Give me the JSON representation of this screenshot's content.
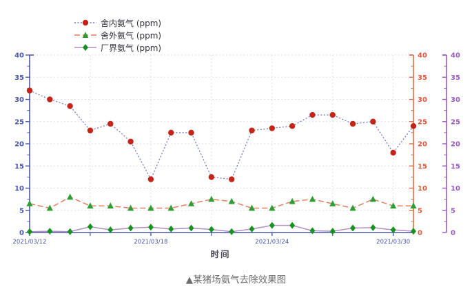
{
  "figure": {
    "caption": "▲某猪场氨气去除效果图"
  },
  "chart_data": {
    "type": "line",
    "title": "",
    "xlabel": "时间",
    "ylim": [
      0,
      40
    ],
    "y_tick_step": 5,
    "y_minor_tick_step": 2.5,
    "grid": true,
    "legend_position": "top-left",
    "x": [
      "2021/03/12",
      "2021/03/13",
      "2021/03/14",
      "2021/03/15",
      "2021/03/16",
      "2021/03/17",
      "2021/03/18",
      "2021/03/19",
      "2021/03/20",
      "2021/03/21",
      "2021/03/22",
      "2021/03/23",
      "2021/03/24",
      "2021/03/25",
      "2021/03/26",
      "2021/03/27",
      "2021/03/28",
      "2021/03/29",
      "2021/03/30",
      "2021/03/31"
    ],
    "x_tick_labels": [
      "2021/03/12",
      "2021/03/18",
      "2021/03/24",
      "2021/03/30"
    ],
    "x_tick_indices": [
      0,
      6,
      12,
      18
    ],
    "x_minor_tick_indices": [
      3,
      9,
      15
    ],
    "grid_x_indices": [
      3,
      6,
      9,
      12,
      15,
      18
    ],
    "axes": [
      {
        "id": "left",
        "side": "left",
        "color": "#4a57aa",
        "label_color": "#4a57aa",
        "range": [
          0,
          40
        ]
      },
      {
        "id": "right-inner",
        "side": "right",
        "color": "#e26a45",
        "label_color": "#e05838",
        "range": [
          0,
          40
        ]
      },
      {
        "id": "right-outer",
        "side": "right-outer",
        "color": "#9c58bc",
        "label_color": "#9c58c4",
        "range": [
          0,
          40
        ]
      }
    ],
    "series": [
      {
        "name": "舍内氨气 (ppm)",
        "marker": "circle",
        "marker_color": "#c52418",
        "line_color": "#7179c6",
        "line_style": "dotted",
        "values": [
          32,
          30,
          28.5,
          23,
          24.5,
          20.5,
          12,
          22.5,
          22.5,
          12.5,
          12,
          23,
          23.5,
          24,
          26.5,
          26.5,
          24.5,
          25,
          18,
          24
        ]
      },
      {
        "name": "舍外氨气 (ppm)",
        "marker": "triangle",
        "marker_color": "#2e9e35",
        "line_color": "#e07e5e",
        "line_style": "dashed",
        "values": [
          6.5,
          5.5,
          8,
          6,
          6,
          5.5,
          5.5,
          5.5,
          6.5,
          7.5,
          7,
          5.5,
          5.5,
          7,
          7.5,
          6.5,
          5.5,
          7.5,
          6,
          6
        ]
      },
      {
        "name": "厂界氨气 (ppm)",
        "marker": "diamond",
        "marker_color": "#17921e",
        "line_color": "#b28dc6",
        "line_style": "solid",
        "values": [
          0.2,
          0.3,
          0.2,
          1.3,
          0.6,
          1,
          1.2,
          0.8,
          1,
          0.7,
          0.2,
          0.8,
          1.6,
          1.6,
          0.4,
          0.3,
          1,
          1.1,
          0.6,
          0.3
        ]
      }
    ],
    "grid_color_h": "#dcdde8",
    "grid_color_v": "#dde0ea"
  }
}
